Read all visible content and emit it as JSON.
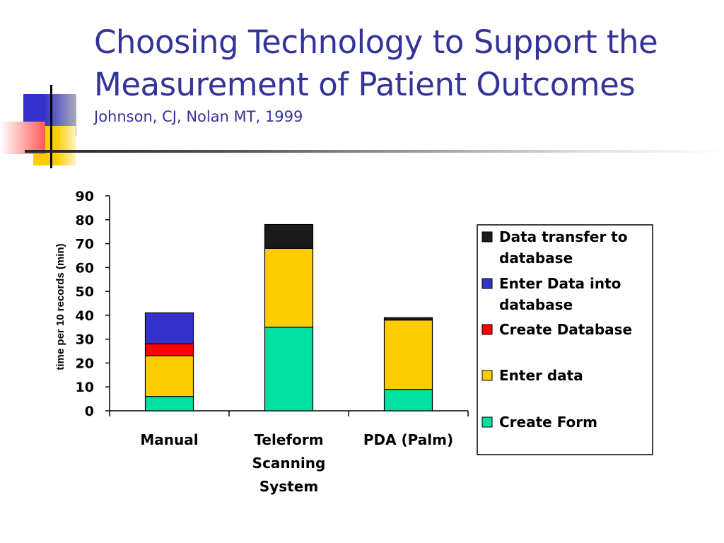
{
  "slide": {
    "title_lines": [
      "Choosing Technology to Support the",
      "Measurement of Patient Outcomes"
    ],
    "subtitle": "Johnson, CJ, Nolan MT, 1999"
  },
  "colors": {
    "title": "#333399",
    "Create Form": "#00e0a0",
    "Enter data": "#ffcc00",
    "Create Database": "#ff0000",
    "Enter Data into database": "#3333cc",
    "Data transfer to database": "#1a1a1a"
  },
  "chart_data": {
    "type": "bar",
    "stacked": true,
    "categories": [
      [
        "Manual"
      ],
      [
        "Teleform",
        "Scanning",
        "System"
      ],
      [
        "PDA (Palm)"
      ]
    ],
    "series": [
      {
        "name": "Create Form",
        "values": [
          6,
          35,
          9
        ]
      },
      {
        "name": "Enter data",
        "values": [
          17,
          33,
          29
        ]
      },
      {
        "name": "Create Database",
        "values": [
          5,
          0,
          0
        ]
      },
      {
        "name": "Enter Data into database",
        "values": [
          13,
          0,
          0
        ]
      },
      {
        "name": "Data transfer to database",
        "values": [
          0,
          10,
          1
        ]
      }
    ],
    "ylabel": "time per 10 records (min)",
    "ylim": [
      0,
      90
    ],
    "yticks": [
      0,
      10,
      20,
      30,
      40,
      50,
      60,
      70,
      80,
      90
    ],
    "legend": {
      "placement": "right",
      "entries": [
        [
          "Data transfer to",
          "database"
        ],
        [
          "Enter Data into",
          "database"
        ],
        [
          "Create Database"
        ],
        [
          "Enter data"
        ],
        [
          "Create Form"
        ]
      ],
      "series_order": [
        "Data transfer to database",
        "Enter Data into database",
        "Create Database",
        "Enter data",
        "Create Form"
      ]
    },
    "grid": false
  }
}
